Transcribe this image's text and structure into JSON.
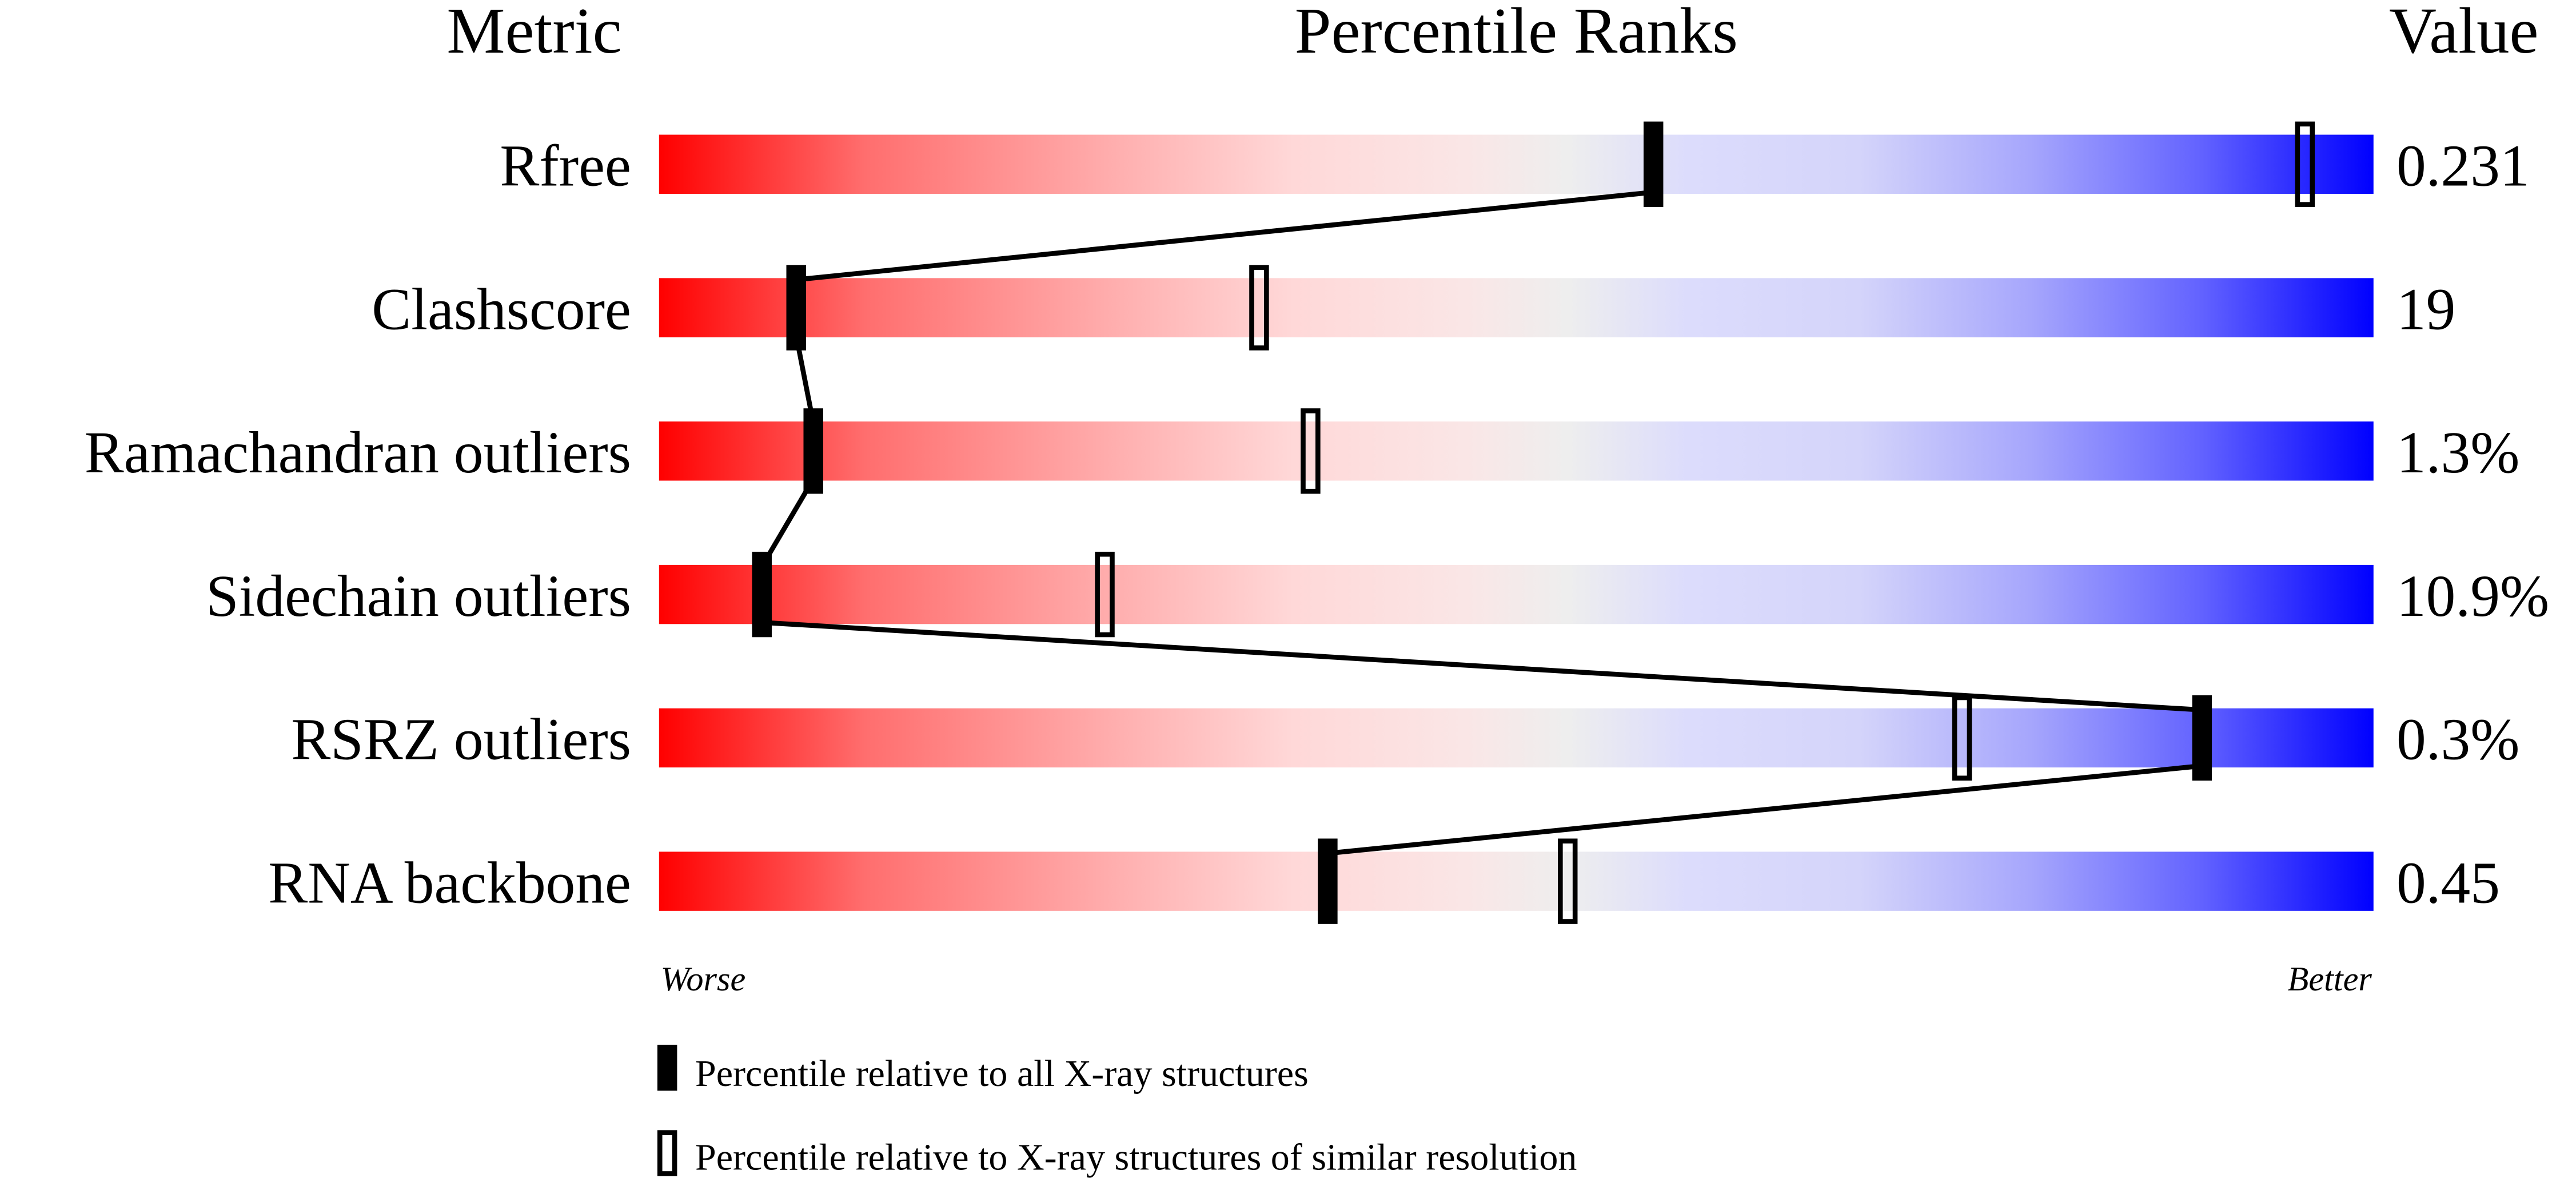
{
  "chart_data": {
    "type": "percentile-slider",
    "headers": {
      "metric": "Metric",
      "ranks": "Percentile Ranks",
      "value": "Value"
    },
    "axis": {
      "left_label": "Worse",
      "right_label": "Better",
      "range": [
        0,
        100
      ]
    },
    "rows": [
      {
        "metric": "Rfree",
        "value": "0.231",
        "percentile_all": 58,
        "percentile_similar": 96
      },
      {
        "metric": "Clashscore",
        "value": "19",
        "percentile_all": 8,
        "percentile_similar": 35
      },
      {
        "metric": "Ramachandran outliers",
        "value": "1.3%",
        "percentile_all": 9,
        "percentile_similar": 38
      },
      {
        "metric": "Sidechain outliers",
        "value": "10.9%",
        "percentile_all": 6,
        "percentile_similar": 26
      },
      {
        "metric": "RSRZ outliers",
        "value": "0.3%",
        "percentile_all": 90,
        "percentile_similar": 76
      },
      {
        "metric": "RNA backbone",
        "value": "0.45",
        "percentile_all": 39,
        "percentile_similar": 53
      }
    ],
    "legend": {
      "filled": "Percentile relative to all X-ray structures",
      "hollow": "Percentile relative to X-ray structures of similar resolution"
    },
    "colors": {
      "worse": "#ff0000",
      "middle": "#eeeeee",
      "better": "#0000ff",
      "marker": "#000000"
    }
  }
}
